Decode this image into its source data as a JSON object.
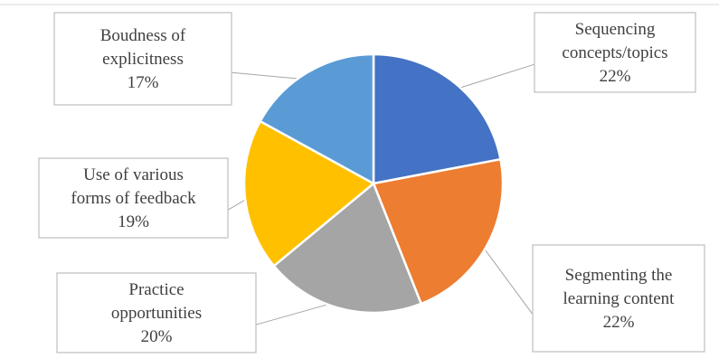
{
  "chart_data": {
    "type": "pie",
    "title": "",
    "start_angle_deg": 0,
    "direction": "clockwise",
    "slices": [
      {
        "category": "Sequencing concepts/topics",
        "value": 22,
        "label_lines": [
          "Sequencing",
          "concepts/topics",
          "22%"
        ],
        "color": "#4472c4"
      },
      {
        "category": "Segmenting the learning content",
        "value": 22,
        "label_lines": [
          "Segmenting the",
          "learning content",
          "22%"
        ],
        "color": "#ed7d31"
      },
      {
        "category": "Practice opportunities",
        "value": 20,
        "label_lines": [
          "Practice",
          "opportunities",
          "20%"
        ],
        "color": "#a5a5a5"
      },
      {
        "category": "Use of various forms of feedback",
        "value": 19,
        "label_lines": [
          "Use of various",
          "forms of feedback",
          "19%"
        ],
        "color": "#ffc000"
      },
      {
        "category": "Boudness of explicitness",
        "value": 17,
        "label_lines": [
          "Boudness of",
          "explicitness",
          "17%"
        ],
        "color": "#5b9bd5"
      }
    ],
    "legend": "none",
    "labels": "callouts"
  }
}
